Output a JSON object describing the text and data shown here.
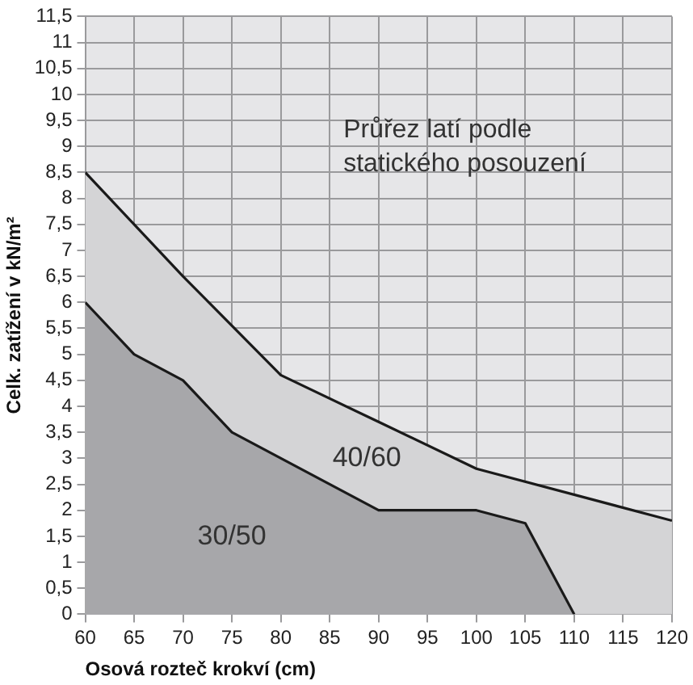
{
  "chart_data": {
    "type": "area",
    "xlabel": "Osová rozteč krokví (cm)",
    "ylabel": "Celk. zatížení v kN/m²",
    "annotations": [
      "Průřez latí podle statického posouzení"
    ],
    "series": [
      {
        "name": "30/50",
        "color": "#a7a7aa",
        "x": [
          60,
          65,
          70,
          75,
          90,
          100,
          105,
          110
        ],
        "values": [
          6,
          5,
          4.5,
          3.5,
          2,
          2,
          1.75,
          0
        ]
      },
      {
        "name": "40/60",
        "color": "#d4d4d6",
        "x": [
          60,
          70,
          80,
          90,
          100,
          120
        ],
        "values": [
          8.5,
          6.5,
          4.6,
          3.7,
          2.8,
          1.8
        ]
      }
    ],
    "xlim": [
      60,
      120
    ],
    "xticks": [
      60,
      65,
      70,
      75,
      80,
      85,
      90,
      95,
      100,
      105,
      110,
      115,
      120
    ],
    "ylim": [
      0,
      11.5
    ],
    "yticks": [
      0,
      {
        "value": 0.5,
        "label": "0,5"
      },
      1,
      {
        "value": 1.5,
        "label": "1,5"
      },
      2,
      {
        "value": 2.5,
        "label": "2,5"
      },
      3,
      {
        "value": 3.5,
        "label": "3,5"
      },
      4,
      {
        "value": 4.5,
        "label": "4,5"
      },
      5,
      {
        "value": 5.5,
        "label": "5,5"
      },
      6,
      {
        "value": 6.5,
        "label": "6,5"
      },
      7,
      {
        "value": 7.5,
        "label": "7,5"
      },
      8,
      {
        "value": 8.5,
        "label": "8,5"
      },
      9,
      {
        "value": 9.5,
        "label": "9,5"
      },
      10,
      {
        "value": 10.5,
        "label": "10,5"
      },
      11,
      {
        "value": 11.5,
        "label": "11,5"
      }
    ],
    "grid": true,
    "legend": false,
    "marker": "none",
    "line_style": "solid"
  }
}
